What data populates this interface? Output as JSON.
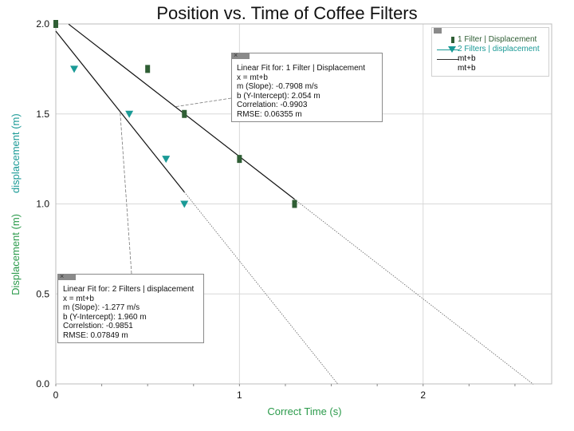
{
  "title": "Position vs. Time of Coffee Filters",
  "chart_data": {
    "type": "scatter",
    "title": "Position vs. Time of Coffee Filters",
    "xlabel": "Correct Time (s)",
    "ylabel_parts": [
      "Displacement (m)",
      "displacement (m)"
    ],
    "xlim": [
      0,
      2.7
    ],
    "ylim": [
      0,
      2.0
    ],
    "xticks": [
      0,
      1,
      2
    ],
    "yticks": [
      "0.0",
      "0.5",
      "1.0",
      "1.5",
      "2.0"
    ],
    "series": [
      {
        "name": "1 Filter | Displacement",
        "color": "#2f5e34",
        "marker": "bar",
        "points": [
          [
            0.0,
            2.0
          ],
          [
            0.5,
            1.75
          ],
          [
            0.7,
            1.5
          ],
          [
            1.0,
            1.25
          ],
          [
            1.3,
            1.0
          ]
        ]
      },
      {
        "name": "2 Filters | displacement",
        "color": "#1a9a96",
        "marker": "triangle-down",
        "points": [
          [
            0.1,
            1.75
          ],
          [
            0.4,
            1.5
          ],
          [
            0.6,
            1.25
          ],
          [
            0.7,
            1.0
          ]
        ]
      }
    ],
    "fits": [
      {
        "name": "mt+b",
        "m": -0.7908,
        "b": 2.054,
        "solid_range": [
          0.07,
          1.3
        ],
        "dotted_range": [
          1.3,
          2.6
        ]
      },
      {
        "name": "mt+b",
        "m": -1.277,
        "b": 1.96,
        "solid_range": [
          0.0,
          0.7
        ],
        "dotted_range": [
          0.7,
          1.535
        ]
      }
    ]
  },
  "fit_box_1": {
    "lines": [
      "Linear Fit for: 1 Filter | Displacement",
      "x = mt+b",
      "m (Slope): -0.7908 m/s",
      "b (Y-Intercept): 2.054 m",
      "Correlation: -0.9903",
      "RMSE: 0.06355 m"
    ]
  },
  "fit_box_2": {
    "lines": [
      "Linear Fit for: 2 Filters | displacement",
      "x = mt+b",
      "m (Slope): -1.277 m/s",
      "b (Y-Intercept): 1.960 m",
      "Correlstion: -0.9851",
      "RMSE: 0.07849 m"
    ]
  },
  "legend": {
    "items": [
      "1 Filter | Displacement",
      "2 Filters | displacement",
      "mt+b",
      "mt+b"
    ]
  }
}
